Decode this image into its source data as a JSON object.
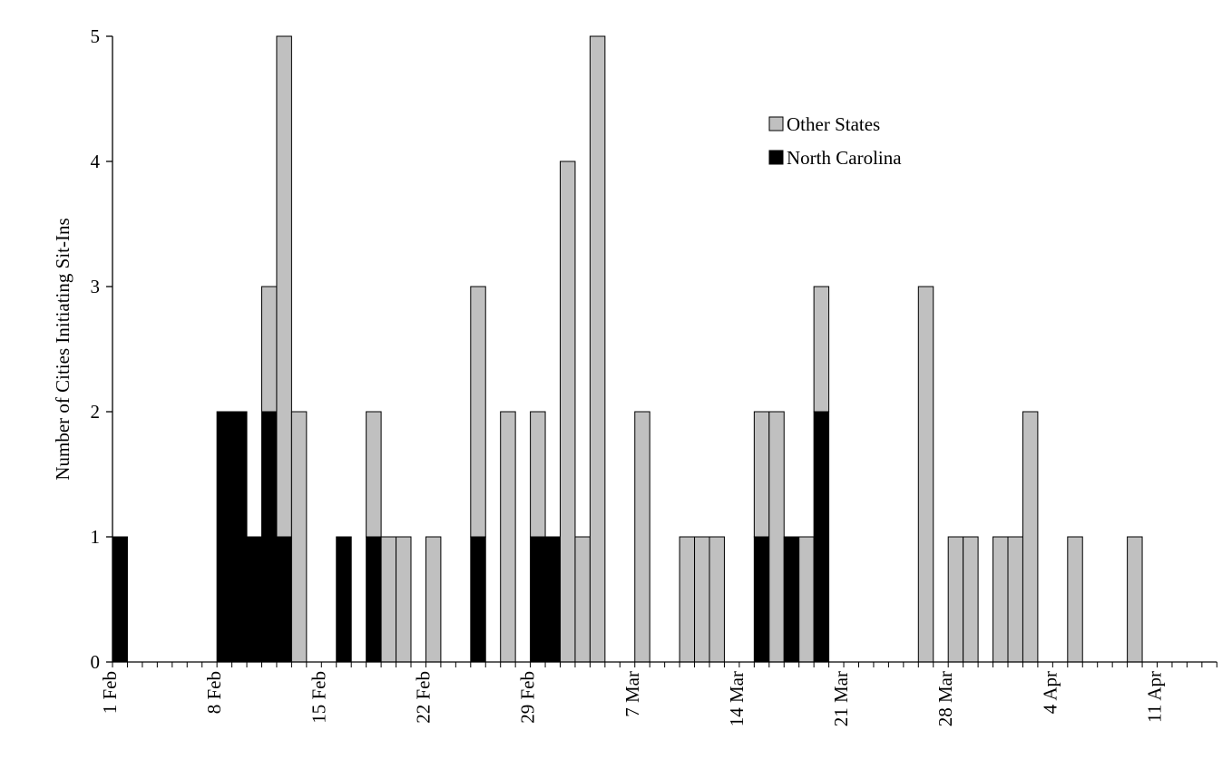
{
  "chart_data": {
    "type": "bar",
    "stacked": true,
    "title": "",
    "xlabel": "",
    "ylabel": "Number of Cities Initiating Sit-Ins",
    "ylim": [
      0,
      5
    ],
    "yticks": [
      "0",
      "1",
      "2",
      "3",
      "4",
      "5"
    ],
    "x_start_date": "1960-02-01",
    "x_tick_labels": [
      "1 Feb",
      "8 Feb",
      "15 Feb",
      "22 Feb",
      "29 Feb",
      "7 Mar",
      "14 Mar",
      "21 Mar",
      "28 Mar",
      "4 Apr",
      "11 Apr"
    ],
    "x": [
      "1 Feb",
      "2 Feb",
      "3 Feb",
      "4 Feb",
      "5 Feb",
      "6 Feb",
      "7 Feb",
      "8 Feb",
      "9 Feb",
      "10 Feb",
      "11 Feb",
      "12 Feb",
      "13 Feb",
      "14 Feb",
      "15 Feb",
      "16 Feb",
      "17 Feb",
      "18 Feb",
      "19 Feb",
      "20 Feb",
      "21 Feb",
      "22 Feb",
      "23 Feb",
      "24 Feb",
      "25 Feb",
      "26 Feb",
      "27 Feb",
      "28 Feb",
      "29 Feb",
      "1 Mar",
      "2 Mar",
      "3 Mar",
      "4 Mar",
      "5 Mar",
      "6 Mar",
      "7 Mar",
      "8 Mar",
      "9 Mar",
      "10 Mar",
      "11 Mar",
      "12 Mar",
      "13 Mar",
      "14 Mar",
      "15 Mar",
      "16 Mar",
      "17 Mar",
      "18 Mar",
      "19 Mar",
      "20 Mar",
      "21 Mar",
      "22 Mar",
      "23 Mar",
      "24 Mar",
      "25 Mar",
      "26 Mar",
      "27 Mar",
      "28 Mar",
      "29 Mar",
      "30 Mar",
      "31 Mar",
      "1 Apr",
      "2 Apr",
      "3 Apr",
      "4 Apr",
      "5 Apr",
      "6 Apr",
      "7 Apr",
      "8 Apr",
      "9 Apr",
      "10 Apr",
      "11 Apr",
      "12 Apr",
      "13 Apr",
      "14 Apr"
    ],
    "series": [
      {
        "name": "North Carolina",
        "color": "#000000",
        "values": [
          1,
          0,
          0,
          0,
          0,
          0,
          0,
          2,
          2,
          1,
          2,
          1,
          0,
          0,
          0,
          1,
          0,
          1,
          0,
          0,
          0,
          0,
          0,
          0,
          1,
          0,
          0,
          0,
          1,
          1,
          0,
          0,
          0,
          0,
          0,
          0,
          0,
          0,
          0,
          0,
          0,
          0,
          0,
          1,
          0,
          1,
          0,
          2,
          0,
          0,
          0,
          0,
          0,
          0,
          0,
          0,
          0,
          0,
          0,
          0,
          0,
          0,
          0,
          0,
          0,
          0,
          0,
          0,
          0,
          0,
          0,
          0,
          0,
          0
        ]
      },
      {
        "name": "Other States",
        "color": "#c0c0c0",
        "values": [
          0,
          0,
          0,
          0,
          0,
          0,
          0,
          0,
          0,
          0,
          1,
          4,
          2,
          0,
          0,
          0,
          0,
          1,
          1,
          1,
          0,
          1,
          0,
          0,
          2,
          0,
          2,
          0,
          1,
          0,
          4,
          1,
          5,
          0,
          0,
          2,
          0,
          0,
          1,
          1,
          1,
          0,
          0,
          1,
          2,
          0,
          1,
          1,
          0,
          0,
          0,
          0,
          0,
          0,
          3,
          0,
          1,
          1,
          0,
          1,
          1,
          2,
          0,
          0,
          1,
          0,
          0,
          0,
          1,
          0,
          0,
          0,
          0,
          0
        ]
      }
    ],
    "legend": {
      "position": "top-right",
      "entries": [
        {
          "label": "Other States",
          "color": "#c0c0c0"
        },
        {
          "label": "North Carolina",
          "color": "#000000"
        }
      ]
    },
    "grid": false
  }
}
